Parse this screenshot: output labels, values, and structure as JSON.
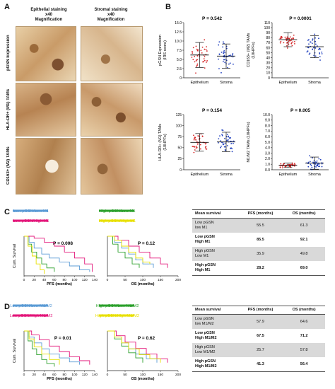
{
  "panelA": {
    "letter": "A",
    "col1_title": "Epithelial staining",
    "col1_mag": "x40\nMagnification",
    "col2_title": "Stromal staining",
    "col2_mag": "x40\nMagnification",
    "rows": [
      "pGSN Expression",
      "HLA-DR+ (M1) TAMs",
      "CD163+ (M2) TAMs"
    ]
  },
  "panelB": {
    "letter": "B",
    "plots": [
      {
        "p": "P = 0.542",
        "ylabel": "pGSN Expression\n(IRS score)",
        "yticks": [
          "0",
          "2.5",
          "5.0",
          "7.5",
          "10.0",
          "12.5",
          "15.0"
        ],
        "ymax": 15,
        "groups": [
          "Epithelium",
          "Stroma"
        ],
        "mean": [
          6.2,
          5.9
        ],
        "sd": [
          3.4,
          3.3
        ],
        "color_a": "#d62728",
        "color_b": "#1f3fbf"
      },
      {
        "p": "P = 0.0001",
        "ylabel": "CD163+ (M2) TAMs\n(10HPFs)",
        "yticks": [
          "0",
          "10",
          "20",
          "30",
          "40",
          "50",
          "60",
          "70",
          "80",
          "90",
          "100",
          "110"
        ],
        "ymax": 110,
        "groups": [
          "Epithelium",
          "Stroma"
        ],
        "mean": [
          76,
          62
        ],
        "sd": [
          14,
          22
        ],
        "color_a": "#d62728",
        "color_b": "#1f3fbf"
      },
      {
        "p": "P = 0.154",
        "ylabel": "HLA-DR+ (M1) TAMs\n(10HPFs)",
        "yticks": [
          "0",
          "25",
          "50",
          "75",
          "100",
          "125"
        ],
        "ymax": 125,
        "groups": [
          "Epithelium",
          "Stroma"
        ],
        "mean": [
          62,
          63
        ],
        "sd": [
          20,
          22
        ],
        "color_a": "#d62728",
        "color_b": "#1f3fbf"
      },
      {
        "p": "P = 0.005",
        "ylabel": "M1/M2 TAMs (10HPFs)",
        "yticks": [
          "0.0",
          "1.0",
          "2.0",
          "3.0",
          "4.0",
          "5.0",
          "6.0",
          "7.0",
          "8.0",
          "9.0",
          "10.0"
        ],
        "ymax": 10,
        "groups": [
          "Epithelium",
          "Stroma"
        ],
        "mean": [
          0.8,
          1.2
        ],
        "sd": [
          0.4,
          1.1
        ],
        "color_a": "#d62728",
        "color_b": "#1f3fbf"
      }
    ]
  },
  "panelC": {
    "letter": "C",
    "legend": [
      {
        "label": "Low pGSN/Low M1",
        "color": "#5b9bd5"
      },
      {
        "label": "High pGSN/Low M1",
        "color": "#2ca02c"
      },
      {
        "label": "Low pGSN/High M1",
        "color": "#e3177a"
      },
      {
        "label": "High pGSN/High M1",
        "color": "#e8e000"
      }
    ],
    "ylabel": "Cum. Survival",
    "pfs": {
      "p": "P = 0.008",
      "xlabel": "PFS (months)",
      "xticks": [
        "0",
        "20",
        "40",
        "60",
        "80",
        "100",
        "120",
        "140"
      ]
    },
    "os": {
      "p": "P = 0.12",
      "xlabel": "OS (months)",
      "xticks": [
        "0",
        "50",
        "100",
        "150",
        "200"
      ]
    },
    "table": {
      "headers": [
        "Mean survival",
        "PFS (months)",
        "OS (months)"
      ],
      "rows": [
        {
          "label": "Low pGSN\nlow M1",
          "pfs": "55.5",
          "os": "61.3",
          "bold": false
        },
        {
          "label": "Low pGSN\nHigh M1",
          "pfs": "85.5",
          "os": "92.1",
          "bold": true
        },
        {
          "label": "High pGSN\nLow M1",
          "pfs": "35.9",
          "os": "49.8",
          "bold": false
        },
        {
          "label": "High pGSN\nHigh M1",
          "pfs": "28.2",
          "os": "69.0",
          "bold": true
        }
      ]
    }
  },
  "panelD": {
    "letter": "D",
    "legend": [
      {
        "label": "Low pGSN/Low M1/M2",
        "color": "#5b9bd5"
      },
      {
        "label": "High pGSN/Low M1/M2",
        "color": "#2ca02c"
      },
      {
        "label": "Low pGSN/High M1/M2",
        "color": "#e3177a"
      },
      {
        "label": "High pGSN/High M1/M2",
        "color": "#e8e000"
      }
    ],
    "ylabel": "Cum. Survival",
    "pfs": {
      "p": "P = 0.01",
      "xlabel": "PFS (months)",
      "xticks": [
        "0",
        "20",
        "40",
        "60",
        "80",
        "100",
        "120",
        "140"
      ]
    },
    "os": {
      "p": "P = 0.62",
      "xlabel": "OS (months)",
      "xticks": [
        "0",
        "50",
        "100",
        "150",
        "200"
      ]
    },
    "table": {
      "headers": [
        "Mean survival",
        "PFS (months)",
        "OS (months)"
      ],
      "rows": [
        {
          "label": "Low pGSN\nlow M1/M2",
          "pfs": "57.9",
          "os": "64.6",
          "bold": false
        },
        {
          "label": "Low pGSN\nHigh M1/M2",
          "pfs": "67.5",
          "os": "71.2",
          "bold": true
        },
        {
          "label": "High pGSN\nLow M1/M2",
          "pfs": "25.7",
          "os": "57.8",
          "bold": false
        },
        {
          "label": "High pGSN\nHigh M1/M2",
          "pfs": "41.3",
          "os": "56.4",
          "bold": true
        }
      ]
    }
  },
  "chart_data": [
    {
      "type": "scatter",
      "title": "",
      "ylabel": "pGSN Expression (IRS score)",
      "categories": [
        "Epithelium",
        "Stroma"
      ],
      "series": [
        {
          "name": "Epithelium",
          "mean": 6.2,
          "sd": 3.4
        },
        {
          "name": "Stroma",
          "mean": 5.9,
          "sd": 3.3
        }
      ],
      "ylim": [
        0,
        15
      ],
      "annotation": "P = 0.542"
    },
    {
      "type": "scatter",
      "title": "",
      "ylabel": "CD163+ (M2) TAMs (10HPFs)",
      "categories": [
        "Epithelium",
        "Stroma"
      ],
      "series": [
        {
          "name": "Epithelium",
          "mean": 76,
          "sd": 14
        },
        {
          "name": "Stroma",
          "mean": 62,
          "sd": 22
        }
      ],
      "ylim": [
        0,
        110
      ],
      "annotation": "P = 0.0001"
    },
    {
      "type": "scatter",
      "title": "",
      "ylabel": "HLA-DR+ (M1) TAMs (10HPFs)",
      "categories": [
        "Epithelium",
        "Stroma"
      ],
      "series": [
        {
          "name": "Epithelium",
          "mean": 62,
          "sd": 20
        },
        {
          "name": "Stroma",
          "mean": 63,
          "sd": 22
        }
      ],
      "ylim": [
        0,
        125
      ],
      "annotation": "P = 0.154"
    },
    {
      "type": "scatter",
      "title": "",
      "ylabel": "M1/M2 TAMs (10HPFs)",
      "categories": [
        "Epithelium",
        "Stroma"
      ],
      "series": [
        {
          "name": "Epithelium",
          "mean": 0.8,
          "sd": 0.4
        },
        {
          "name": "Stroma",
          "mean": 1.2,
          "sd": 1.1
        }
      ],
      "ylim": [
        0,
        10
      ],
      "annotation": "P = 0.005"
    },
    {
      "type": "line",
      "title": "",
      "xlabel": "PFS (months)",
      "ylabel": "Cum. Survival",
      "xlim": [
        0,
        140
      ],
      "ylim": [
        0,
        1
      ],
      "annotation": "P = 0.008",
      "series": [
        {
          "name": "Low pGSN/Low M1",
          "x": [
            0,
            10,
            20,
            35,
            50,
            70,
            90,
            110,
            130
          ],
          "y": [
            1,
            0.85,
            0.7,
            0.55,
            0.45,
            0.35,
            0.25,
            0.15,
            0.1
          ]
        },
        {
          "name": "High pGSN/Low M1",
          "x": [
            0,
            8,
            15,
            25,
            35,
            45,
            60
          ],
          "y": [
            1,
            0.8,
            0.6,
            0.45,
            0.3,
            0.2,
            0.1
          ]
        },
        {
          "name": "Low pGSN/High M1",
          "x": [
            0,
            20,
            40,
            60,
            80,
            100,
            120,
            135
          ],
          "y": [
            1,
            0.95,
            0.85,
            0.75,
            0.6,
            0.45,
            0.3,
            0.1
          ]
        },
        {
          "name": "High pGSN/High M1",
          "x": [
            0,
            8,
            16,
            24,
            32,
            40
          ],
          "y": [
            1,
            0.75,
            0.5,
            0.3,
            0.15,
            0.05
          ]
        }
      ]
    },
    {
      "type": "line",
      "title": "",
      "xlabel": "OS (months)",
      "ylabel": "Cum. Survival",
      "xlim": [
        0,
        200
      ],
      "ylim": [
        0,
        1
      ],
      "annotation": "P = 0.12",
      "series": [
        {
          "name": "Low pGSN/Low M1",
          "x": [
            0,
            20,
            40,
            60,
            80,
            100,
            130
          ],
          "y": [
            1,
            0.85,
            0.7,
            0.55,
            0.4,
            0.3,
            0.2
          ]
        },
        {
          "name": "High pGSN/Low M1",
          "x": [
            0,
            15,
            30,
            50,
            70,
            90
          ],
          "y": [
            1,
            0.8,
            0.6,
            0.45,
            0.3,
            0.2
          ]
        },
        {
          "name": "Low pGSN/High M1",
          "x": [
            0,
            30,
            60,
            90,
            120,
            150,
            170
          ],
          "y": [
            1,
            0.9,
            0.75,
            0.6,
            0.45,
            0.3,
            0.2
          ]
        },
        {
          "name": "High pGSN/High M1",
          "x": [
            0,
            20,
            40,
            60,
            80,
            100,
            120
          ],
          "y": [
            1,
            0.9,
            0.75,
            0.6,
            0.45,
            0.35,
            0.3
          ]
        }
      ]
    },
    {
      "type": "line",
      "title": "",
      "xlabel": "PFS (months)",
      "ylabel": "Cum. Survival",
      "xlim": [
        0,
        140
      ],
      "ylim": [
        0,
        1
      ],
      "annotation": "P = 0.01",
      "series": [
        {
          "name": "Low pGSN/Low M1/M2",
          "x": [
            0,
            10,
            20,
            35,
            50,
            70,
            90,
            110
          ],
          "y": [
            1,
            0.85,
            0.7,
            0.55,
            0.42,
            0.32,
            0.22,
            0.15
          ]
        },
        {
          "name": "High pGSN/Low M1/M2",
          "x": [
            0,
            8,
            16,
            25,
            35,
            45,
            60
          ],
          "y": [
            1,
            0.75,
            0.55,
            0.4,
            0.28,
            0.18,
            0.1
          ]
        },
        {
          "name": "Low pGSN/High M1/M2",
          "x": [
            0,
            15,
            30,
            50,
            70,
            90,
            110,
            130
          ],
          "y": [
            1,
            0.9,
            0.78,
            0.62,
            0.48,
            0.35,
            0.25,
            0.15
          ]
        },
        {
          "name": "High pGSN/High M1/M2",
          "x": [
            0,
            10,
            20,
            35,
            50,
            70
          ],
          "y": [
            1,
            0.8,
            0.6,
            0.42,
            0.28,
            0.15
          ]
        }
      ]
    },
    {
      "type": "line",
      "title": "",
      "xlabel": "OS (months)",
      "ylabel": "Cum. Survival",
      "xlim": [
        0,
        200
      ],
      "ylim": [
        0,
        1
      ],
      "annotation": "P = 0.62",
      "series": [
        {
          "name": "Low pGSN/Low M1/M2",
          "x": [
            0,
            20,
            40,
            60,
            80,
            110,
            140
          ],
          "y": [
            1,
            0.85,
            0.7,
            0.55,
            0.42,
            0.3,
            0.2
          ]
        },
        {
          "name": "High pGSN/Low M1/M2",
          "x": [
            0,
            20,
            40,
            60,
            80,
            100
          ],
          "y": [
            1,
            0.8,
            0.62,
            0.45,
            0.32,
            0.2
          ]
        },
        {
          "name": "Low pGSN/High M1/M2",
          "x": [
            0,
            25,
            50,
            80,
            110,
            140,
            170
          ],
          "y": [
            1,
            0.88,
            0.72,
            0.56,
            0.42,
            0.3,
            0.2
          ]
        },
        {
          "name": "High pGSN/High M1/M2",
          "x": [
            0,
            20,
            40,
            60,
            90,
            120,
            150
          ],
          "y": [
            1,
            0.85,
            0.7,
            0.55,
            0.4,
            0.3,
            0.2
          ]
        }
      ]
    }
  ]
}
